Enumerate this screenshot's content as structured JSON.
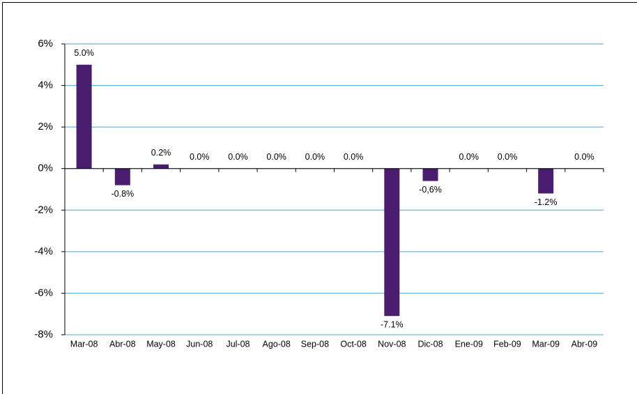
{
  "chart_data": {
    "type": "bar",
    "categories": [
      "Mar-08",
      "Abr-08",
      "May-08",
      "Jun-08",
      "Jul-08",
      "Ago-08",
      "Sep-08",
      "Oct-08",
      "Nov-08",
      "Dic-08",
      "Ene-09",
      "Feb-09",
      "Mar-09",
      "Abr-09"
    ],
    "values": [
      5.0,
      -0.8,
      0.2,
      0.0,
      0.0,
      0.0,
      0.0,
      0.0,
      -7.1,
      -0.6,
      0.0,
      0.0,
      -1.2,
      0.0
    ],
    "value_labels": [
      "5.0%",
      "-0.8%",
      "0.2%",
      "0.0%",
      "0.0%",
      "0.0%",
      "0.0%",
      "0.0%",
      "-7.1%",
      "-0,6%",
      "0.0%",
      "0.0%",
      "-1.2%",
      "0.0%"
    ],
    "color": "#4b1d6e",
    "ylim": [
      -8,
      6
    ],
    "yticks": [
      {
        "value": -8,
        "label": "-8%"
      },
      {
        "value": -6,
        "label": "-6%"
      },
      {
        "value": -4,
        "label": "-4%"
      },
      {
        "value": -2,
        "label": "-2%"
      },
      {
        "value": 0,
        "label": "0%"
      },
      {
        "value": 2,
        "label": "2%"
      },
      {
        "value": 4,
        "label": "4%"
      },
      {
        "value": 6,
        "label": "6%"
      }
    ],
    "grid": true,
    "grid_color": "#4fa3d1"
  }
}
